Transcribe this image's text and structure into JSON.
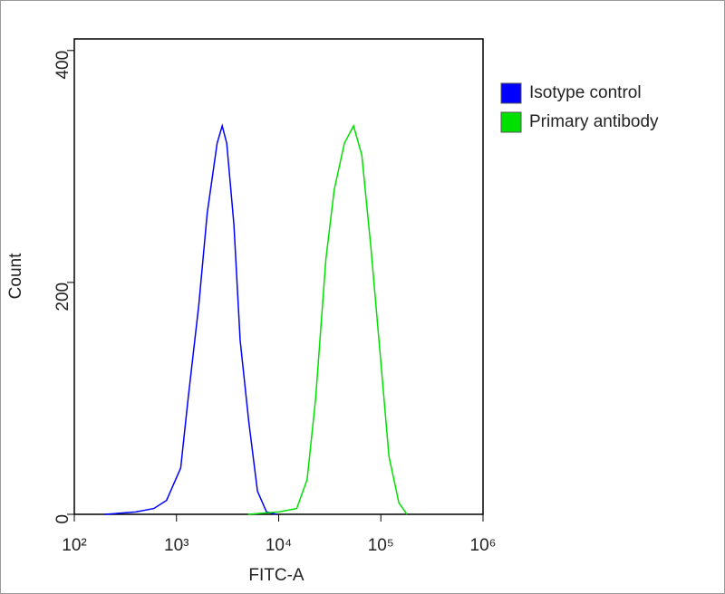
{
  "chart_data": {
    "type": "line",
    "xlabel": "FITC-A",
    "ylabel": "Count",
    "xscale": "log",
    "xlim": [
      100,
      1000000
    ],
    "ylim": [
      0,
      410
    ],
    "xticks": [
      {
        "value": 100,
        "label": "10²"
      },
      {
        "value": 1000,
        "label": "10³"
      },
      {
        "value": 10000,
        "label": "10⁴"
      },
      {
        "value": 100000,
        "label": "10⁵"
      },
      {
        "value": 1000000,
        "label": "10⁶"
      }
    ],
    "yticks": [
      0,
      200,
      400
    ],
    "series": [
      {
        "name": "Isotype control",
        "color": "#0000ff",
        "x": [
          200,
          400,
          600,
          800,
          1100,
          1300,
          1650,
          2000,
          2500,
          2800,
          3100,
          3650,
          4200,
          5100,
          6200,
          7600,
          9500
        ],
        "values": [
          0,
          2,
          5,
          12,
          40,
          100,
          180,
          260,
          320,
          335,
          320,
          250,
          150,
          80,
          20,
          2,
          0
        ]
      },
      {
        "name": "Primary antibody",
        "color": "#00e000",
        "x": [
          5000,
          10000,
          15000,
          19000,
          23000,
          29000,
          35000,
          44000,
          54000,
          65000,
          80000,
          98000,
          120000,
          150000,
          180000
        ],
        "values": [
          0,
          2,
          5,
          30,
          100,
          220,
          280,
          320,
          335,
          310,
          230,
          140,
          50,
          10,
          0
        ]
      }
    ]
  }
}
